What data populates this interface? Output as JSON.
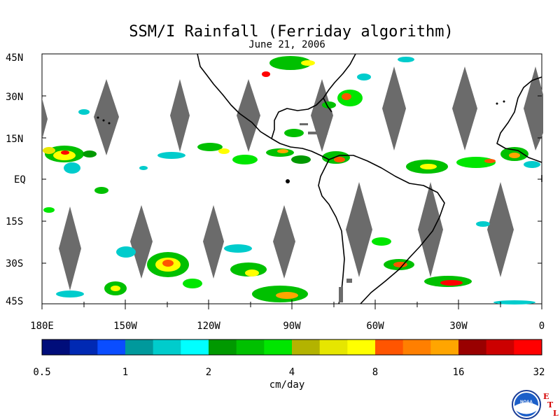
{
  "title": "SSM/I Rainfall (Ferriday algorithm)",
  "date": "June 21, 2006",
  "lat_labels": [
    "45N",
    "30N",
    "15N",
    "EQ",
    "15S",
    "30S",
    "45S"
  ],
  "lon_labels": [
    "180E",
    "150W",
    "120W",
    "90W",
    "60W",
    "30W",
    "0"
  ],
  "colorbar": {
    "colors": [
      "#000d7a",
      "#0029b3",
      "#0a4dff",
      "#00999c",
      "#00cccc",
      "#00ffff",
      "#009900",
      "#00c000",
      "#00e600",
      "#b3b300",
      "#e6e600",
      "#ffff00",
      "#ff5500",
      "#ff7f00",
      "#ffa500",
      "#990000",
      "#cc0000",
      "#ff0000"
    ],
    "tick_labels": [
      "0.5",
      "1",
      "2",
      "4",
      "8",
      "16",
      "32"
    ],
    "unit": "cm/day"
  },
  "logo": {
    "text": "NOAA",
    "letters": [
      "E",
      "T",
      "L"
    ]
  }
}
